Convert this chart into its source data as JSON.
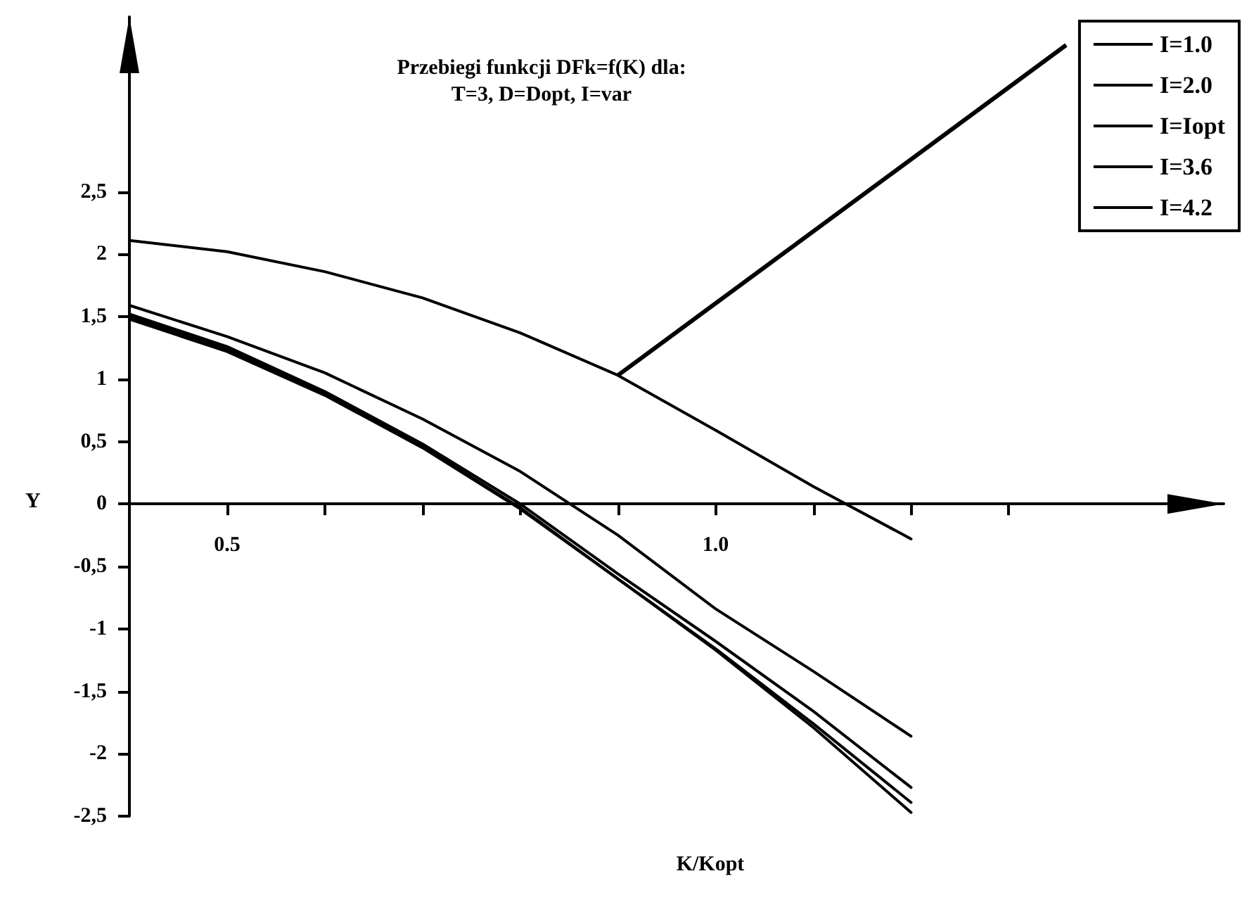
{
  "chart_data": {
    "type": "line",
    "title": "Przebiegi funkcji DFk=f(K) dla:",
    "subtitle": "T=3, D=Dopt, I=var",
    "xlabel": "K/Kopt",
    "ylabel": "Y",
    "x": [
      0.4,
      0.5,
      0.6,
      0.7,
      0.8,
      0.9,
      1.0,
      1.1,
      1.2
    ],
    "series": [
      {
        "name": "I=1.0",
        "color": "#000000",
        "values": [
          2.11,
          2.02,
          1.86,
          1.65,
          1.37,
          1.03,
          0.59,
          0.14,
          -0.28
        ]
      },
      {
        "name": "I=2.0",
        "color": "#000000",
        "values": [
          1.59,
          1.34,
          1.05,
          0.68,
          0.26,
          -0.25,
          -0.84,
          -1.34,
          -1.86
        ]
      },
      {
        "name": "I=Iopt",
        "color": "#000000",
        "values": [
          1.48,
          1.22,
          0.87,
          0.45,
          -0.04,
          -0.6,
          -1.16,
          -1.76,
          -2.39
        ]
      },
      {
        "name": "I=3.6",
        "color": "#000000",
        "values": [
          1.52,
          1.26,
          0.9,
          0.48,
          0.0,
          -0.56,
          -1.1,
          -1.66,
          -2.27
        ]
      },
      {
        "name": "I=4.2",
        "color": "#000000",
        "values": [
          1.5,
          1.24,
          0.88,
          0.46,
          -0.03,
          -0.6,
          -1.17,
          -1.79,
          -2.47
        ]
      }
    ],
    "xlim": [
      0.4,
      1.52
    ],
    "xticks": [
      {
        "value": 0.4,
        "label": null
      },
      0.5,
      {
        "value": 0.6,
        "label": null
      },
      {
        "value": 0.7,
        "label": null
      },
      {
        "value": 0.8,
        "label": null
      },
      {
        "value": 0.9,
        "label": null
      },
      {
        "value": 1.0,
        "label": "1.0"
      },
      {
        "value": 1.1,
        "label": null
      },
      {
        "value": 1.2,
        "label": null
      },
      {
        "value": 1.3,
        "label": null
      }
    ],
    "ylim": [
      -2.5,
      3.9
    ],
    "yticks": [
      {
        "value": -2.5,
        "label": "-2,5"
      },
      -2,
      {
        "value": -1.5,
        "label": "-1,5"
      },
      -1,
      {
        "value": -0.5,
        "label": "-0,5"
      },
      0,
      {
        "value": 0.5,
        "label": "0,5"
      },
      1,
      {
        "value": 1.5,
        "label": "1,5"
      },
      2,
      {
        "value": 2.5,
        "label": "2,5"
      }
    ],
    "grid": false,
    "legend": "top right",
    "marker": "none",
    "line_style": "solid"
  }
}
